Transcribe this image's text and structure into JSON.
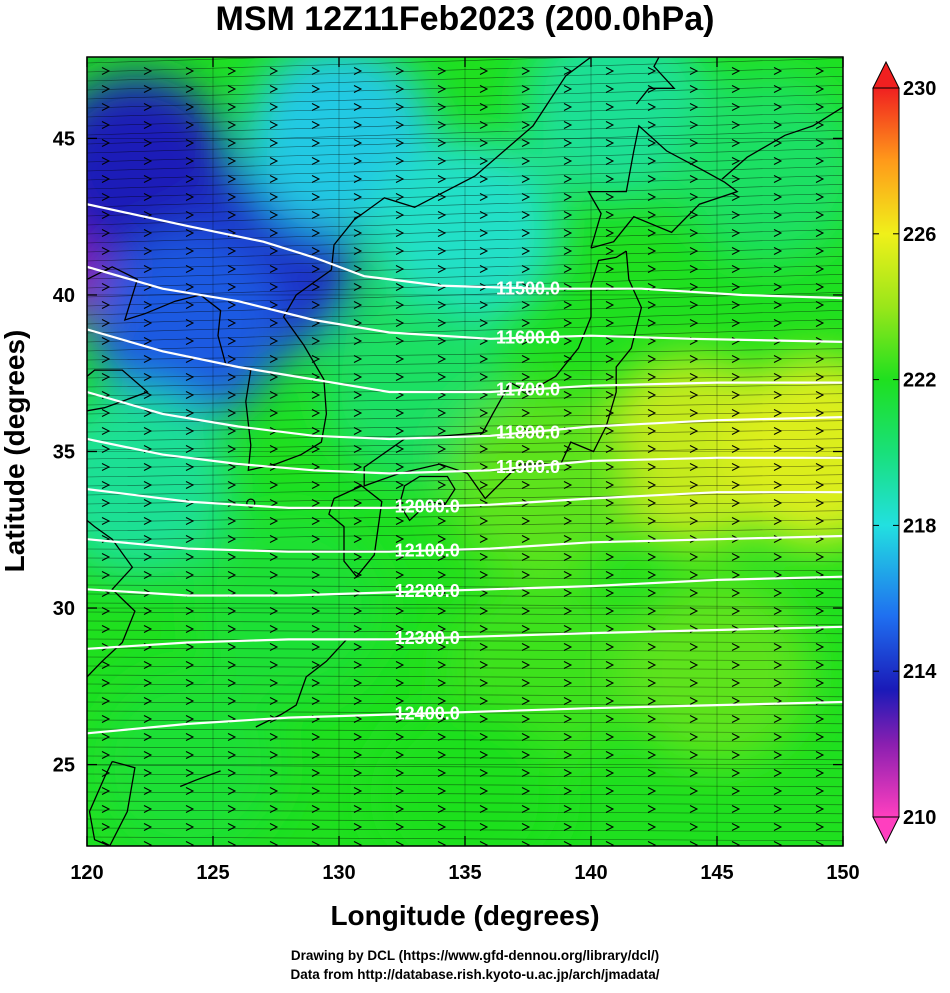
{
  "chart_data": {
    "type": "heatmap",
    "title": "MSM 12Z11Feb2023 (200.0hPa)",
    "xlabel": "Longitude (degrees)",
    "ylabel": "Latitude  (degrees)",
    "xlim": [
      120,
      150
    ],
    "ylim": [
      22.4,
      47.6
    ],
    "x_ticks": [
      120,
      125,
      130,
      135,
      140,
      145,
      150
    ],
    "y_ticks": [
      25,
      30,
      35,
      40,
      45
    ],
    "colorbar": {
      "range": [
        210,
        230
      ],
      "ticks": [
        210,
        214,
        218,
        222,
        226,
        230
      ],
      "stops": [
        {
          "value": 210,
          "color": "#ff3fbf"
        },
        {
          "value": 212,
          "color": "#8a1fb0"
        },
        {
          "value": 213.5,
          "color": "#1a1ab8"
        },
        {
          "value": 215.5,
          "color": "#1f6ff0"
        },
        {
          "value": 218,
          "color": "#22e0e0"
        },
        {
          "value": 220,
          "color": "#19e07a"
        },
        {
          "value": 222,
          "color": "#1fe01f"
        },
        {
          "value": 224,
          "color": "#9ae61a"
        },
        {
          "value": 226,
          "color": "#f0f01a"
        },
        {
          "value": 228,
          "color": "#ff9a1a"
        },
        {
          "value": 230,
          "color": "#f02020"
        }
      ]
    },
    "field_samples": [
      {
        "lon": 121,
        "lat": 42,
        "value": 212.0
      },
      {
        "lon": 122,
        "lat": 44,
        "value": 213.5
      },
      {
        "lon": 127,
        "lat": 41,
        "value": 214.0
      },
      {
        "lon": 124,
        "lat": 39,
        "value": 215.0
      },
      {
        "lon": 130,
        "lat": 45,
        "value": 217.5
      },
      {
        "lon": 135,
        "lat": 42,
        "value": 218.5
      },
      {
        "lon": 141,
        "lat": 46,
        "value": 219.5
      },
      {
        "lon": 147,
        "lat": 44,
        "value": 220.5
      },
      {
        "lon": 133,
        "lat": 37,
        "value": 220.5
      },
      {
        "lon": 144,
        "lat": 35,
        "value": 225.0
      },
      {
        "lon": 149,
        "lat": 35,
        "value": 225.5
      },
      {
        "lon": 138,
        "lat": 34,
        "value": 223.0
      },
      {
        "lon": 128,
        "lat": 30,
        "value": 221.5
      },
      {
        "lon": 138,
        "lat": 28,
        "value": 222.5
      },
      {
        "lon": 145,
        "lat": 28,
        "value": 223.0
      },
      {
        "lon": 124,
        "lat": 25,
        "value": 221.5
      },
      {
        "lon": 135,
        "lat": 24,
        "value": 222.0
      },
      {
        "lon": 122,
        "lat": 34,
        "value": 219.5
      }
    ],
    "contours": [
      {
        "label": "11500.0",
        "label_lon": 137.5,
        "points": [
          [
            120,
            42.9
          ],
          [
            124,
            42.2
          ],
          [
            127,
            41.7
          ],
          [
            129,
            41.2
          ],
          [
            131,
            40.6
          ],
          [
            134,
            40.3
          ],
          [
            138,
            40.2
          ],
          [
            142,
            40.2
          ],
          [
            146,
            40.0
          ],
          [
            150,
            39.9
          ]
        ]
      },
      {
        "label": "11600.0",
        "label_lon": 137.5,
        "points": [
          [
            120,
            40.9
          ],
          [
            123,
            40.2
          ],
          [
            126,
            39.8
          ],
          [
            129,
            39.2
          ],
          [
            132,
            38.8
          ],
          [
            136,
            38.6
          ],
          [
            140,
            38.7
          ],
          [
            144,
            38.6
          ],
          [
            150,
            38.5
          ]
        ]
      },
      {
        "label": "11700.0",
        "label_lon": 137.5,
        "points": [
          [
            120,
            38.9
          ],
          [
            123,
            38.2
          ],
          [
            126,
            37.7
          ],
          [
            129,
            37.3
          ],
          [
            132,
            36.9
          ],
          [
            136,
            36.9
          ],
          [
            140,
            37.1
          ],
          [
            145,
            37.2
          ],
          [
            150,
            37.2
          ]
        ]
      },
      {
        "label": "11800.0",
        "label_lon": 137.5,
        "points": [
          [
            120,
            36.9
          ],
          [
            123,
            36.2
          ],
          [
            126,
            35.8
          ],
          [
            129,
            35.5
          ],
          [
            132,
            35.4
          ],
          [
            136,
            35.5
          ],
          [
            140,
            35.8
          ],
          [
            145,
            36.0
          ],
          [
            150,
            36.1
          ]
        ]
      },
      {
        "label": "11900.0",
        "label_lon": 137.5,
        "points": [
          [
            120,
            35.4
          ],
          [
            123,
            34.9
          ],
          [
            126,
            34.6
          ],
          [
            129,
            34.4
          ],
          [
            132,
            34.3
          ],
          [
            136,
            34.4
          ],
          [
            140,
            34.7
          ],
          [
            145,
            34.8
          ],
          [
            150,
            34.8
          ]
        ]
      },
      {
        "label": "12000.0",
        "label_lon": 133.5,
        "points": [
          [
            120,
            33.8
          ],
          [
            124,
            33.4
          ],
          [
            128,
            33.2
          ],
          [
            132,
            33.2
          ],
          [
            136,
            33.3
          ],
          [
            140,
            33.5
          ],
          [
            145,
            33.7
          ],
          [
            150,
            33.7
          ]
        ]
      },
      {
        "label": "12100.0",
        "label_lon": 133.5,
        "points": [
          [
            120,
            32.2
          ],
          [
            124,
            31.9
          ],
          [
            128,
            31.8
          ],
          [
            132,
            31.8
          ],
          [
            136,
            31.9
          ],
          [
            140,
            32.1
          ],
          [
            145,
            32.2
          ],
          [
            150,
            32.3
          ]
        ]
      },
      {
        "label": "12200.0",
        "label_lon": 133.5,
        "points": [
          [
            120,
            30.6
          ],
          [
            124,
            30.4
          ],
          [
            128,
            30.4
          ],
          [
            132,
            30.5
          ],
          [
            136,
            30.6
          ],
          [
            140,
            30.7
          ],
          [
            145,
            30.9
          ],
          [
            150,
            31.0
          ]
        ]
      },
      {
        "label": "12300.0",
        "label_lon": 133.5,
        "points": [
          [
            120,
            28.7
          ],
          [
            124,
            28.9
          ],
          [
            128,
            29.0
          ],
          [
            132,
            29.0
          ],
          [
            136,
            29.1
          ],
          [
            140,
            29.2
          ],
          [
            145,
            29.3
          ],
          [
            150,
            29.4
          ]
        ]
      },
      {
        "label": "12400.0",
        "label_lon": 133.5,
        "points": [
          [
            120,
            26.0
          ],
          [
            124,
            26.3
          ],
          [
            128,
            26.5
          ],
          [
            132,
            26.6
          ],
          [
            136,
            26.7
          ],
          [
            140,
            26.8
          ],
          [
            145,
            26.9
          ],
          [
            150,
            27.0
          ]
        ]
      }
    ],
    "wind": {
      "direction": "westerly",
      "shown_as": "streamlines with arrowheads"
    },
    "coastlines": true,
    "grid": true,
    "legend": "colorbar-right"
  },
  "credits": {
    "line1": "Drawing by DCL (https://www.gfd-dennou.org/library/dcl/)",
    "line2": "Data from http://database.rish.kyoto-u.ac.jp/arch/jmadata/"
  }
}
